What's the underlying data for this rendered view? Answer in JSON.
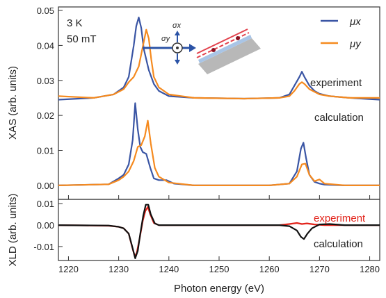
{
  "chart_data": [
    {
      "type": "line",
      "panel": "top",
      "xlabel": "",
      "ylabel": "XAS (arb. units)",
      "xlim": [
        1218,
        1282
      ],
      "ylim": [
        -0.004,
        0.051
      ],
      "yticks": [
        0.0,
        0.01,
        0.02,
        0.03,
        0.04,
        0.05
      ],
      "ytick_labels": [
        "0.00",
        "0.01",
        "0.02",
        "0.03",
        "0.04",
        "0.05"
      ],
      "grid": false,
      "legend_position": "top-right",
      "annotations": {
        "temperature": "3 K",
        "field": "50 mT",
        "experiment": "experiment",
        "calculation": "calculation",
        "sigma_x": "σx",
        "sigma_y": "σy"
      },
      "series": [
        {
          "name": "μx",
          "color": "#3a55a4",
          "group": "experiment",
          "x": [
            1218,
            1225,
            1229,
            1231,
            1232,
            1233,
            1233.5,
            1234,
            1234.5,
            1235,
            1236,
            1237,
            1238,
            1240,
            1245,
            1255,
            1262,
            1264,
            1265,
            1266,
            1266.5,
            1267,
            1268,
            1269,
            1270,
            1272,
            1276,
            1282
          ],
          "y": [
            0.0245,
            0.025,
            0.026,
            0.028,
            0.031,
            0.04,
            0.0455,
            0.048,
            0.045,
            0.039,
            0.033,
            0.029,
            0.027,
            0.0255,
            0.025,
            0.0248,
            0.025,
            0.026,
            0.0285,
            0.031,
            0.0325,
            0.031,
            0.0285,
            0.027,
            0.0262,
            0.0255,
            0.025,
            0.0245
          ]
        },
        {
          "name": "μy",
          "color": "#f58a1f",
          "group": "experiment",
          "x": [
            1218,
            1225,
            1229,
            1231,
            1232,
            1233,
            1234,
            1235,
            1235.5,
            1236,
            1236.5,
            1237,
            1238,
            1240,
            1245,
            1255,
            1262,
            1264,
            1265,
            1266,
            1266.5,
            1267,
            1268,
            1270,
            1272,
            1276,
            1282
          ],
          "y": [
            0.0255,
            0.025,
            0.026,
            0.0275,
            0.0295,
            0.031,
            0.034,
            0.041,
            0.0445,
            0.042,
            0.036,
            0.031,
            0.028,
            0.026,
            0.025,
            0.0248,
            0.025,
            0.0255,
            0.027,
            0.029,
            0.0295,
            0.029,
            0.0275,
            0.026,
            0.0255,
            0.025,
            0.025
          ]
        },
        {
          "name": "μx",
          "color": "#3a55a4",
          "group": "calculation",
          "x": [
            1218,
            1228,
            1230,
            1231,
            1232,
            1232.8,
            1233.3,
            1233.8,
            1234.3,
            1234.8,
            1235.5,
            1236.3,
            1237,
            1238,
            1239,
            1239.5,
            1241,
            1245,
            1260,
            1264,
            1265.5,
            1266.3,
            1266.8,
            1267.3,
            1268,
            1269,
            1270,
            1271,
            1275,
            1282
          ],
          "y": [
            0.0,
            0.0003,
            0.002,
            0.003,
            0.006,
            0.013,
            0.0235,
            0.016,
            0.011,
            0.0095,
            0.009,
            0.005,
            0.002,
            0.0015,
            0.0015,
            0.0015,
            0.0005,
            0.0,
            0.0,
            0.0005,
            0.004,
            0.0105,
            0.0122,
            0.008,
            0.003,
            0.001,
            0.0005,
            0.0002,
            0.0,
            0.0
          ]
        },
        {
          "name": "μy",
          "color": "#f58a1f",
          "group": "calculation",
          "x": [
            1218,
            1228,
            1230,
            1231,
            1232,
            1233,
            1233.8,
            1234.5,
            1235.2,
            1235.8,
            1236.4,
            1237.2,
            1238,
            1240,
            1245,
            1260,
            1264,
            1265.5,
            1266.5,
            1267.2,
            1268,
            1269,
            1270,
            1271,
            1275,
            1282
          ],
          "y": [
            0.0,
            0.0003,
            0.0015,
            0.0025,
            0.004,
            0.007,
            0.011,
            0.0115,
            0.014,
            0.0185,
            0.012,
            0.005,
            0.0025,
            0.0008,
            0.0,
            0.0,
            0.0005,
            0.0025,
            0.006,
            0.0062,
            0.003,
            0.0012,
            0.0017,
            0.0005,
            0.0,
            0.0
          ]
        }
      ]
    },
    {
      "type": "line",
      "panel": "bottom",
      "xlabel": "Photon energy (eV)",
      "ylabel": "XLD (arb. units)",
      "xlim": [
        1218,
        1282
      ],
      "ylim": [
        -0.0165,
        0.012
      ],
      "xticks": [
        1220,
        1230,
        1240,
        1250,
        1260,
        1270,
        1280
      ],
      "xtick_labels": [
        "1220",
        "1230",
        "1240",
        "1250",
        "1260",
        "1270",
        "1280"
      ],
      "yticks": [
        -0.01,
        0.0,
        0.01
      ],
      "ytick_labels": [
        "-0.01",
        "0.00",
        "0.01"
      ],
      "grid": false,
      "annotations": {
        "experiment": "experiment",
        "calculation": "calculation"
      },
      "series": [
        {
          "name": "experiment",
          "color": "#e2231a",
          "x": [
            1218,
            1228,
            1230,
            1231,
            1232,
            1232.6,
            1233.2,
            1233.6,
            1234.2,
            1234.8,
            1235.3,
            1235.8,
            1236.3,
            1237,
            1238,
            1240,
            1250,
            1262,
            1264,
            1265.5,
            1266.5,
            1267.5,
            1269,
            1271,
            1275,
            1282
          ],
          "y": [
            0.0,
            -0.0003,
            -0.0008,
            -0.0015,
            -0.004,
            -0.0095,
            -0.0145,
            -0.013,
            -0.006,
            0.002,
            0.0065,
            0.0085,
            0.005,
            0.001,
            0.0,
            0.0,
            0.0,
            0.0,
            0.0005,
            0.001,
            0.0005,
            0.0008,
            0.0003,
            0.0,
            0.0,
            0.0
          ]
        },
        {
          "name": "calculation",
          "color": "#111111",
          "x": [
            1218,
            1228,
            1230,
            1231,
            1232,
            1232.7,
            1233.3,
            1233.8,
            1234.3,
            1234.9,
            1235.4,
            1235.9,
            1236.4,
            1237.2,
            1238,
            1240,
            1250,
            1262,
            1264,
            1265.5,
            1266.3,
            1266.9,
            1267.6,
            1268.5,
            1270,
            1272,
            1275,
            1282
          ],
          "y": [
            0.0,
            -0.0002,
            -0.0008,
            -0.0015,
            -0.004,
            -0.01,
            -0.0155,
            -0.012,
            -0.004,
            0.0045,
            0.0095,
            0.0095,
            0.005,
            0.0008,
            0.0,
            0.0,
            0.0,
            0.0,
            -0.0005,
            -0.0025,
            -0.0055,
            -0.0065,
            -0.004,
            -0.0015,
            0.0003,
            0.0005,
            0.0,
            0.0
          ]
        }
      ]
    }
  ]
}
